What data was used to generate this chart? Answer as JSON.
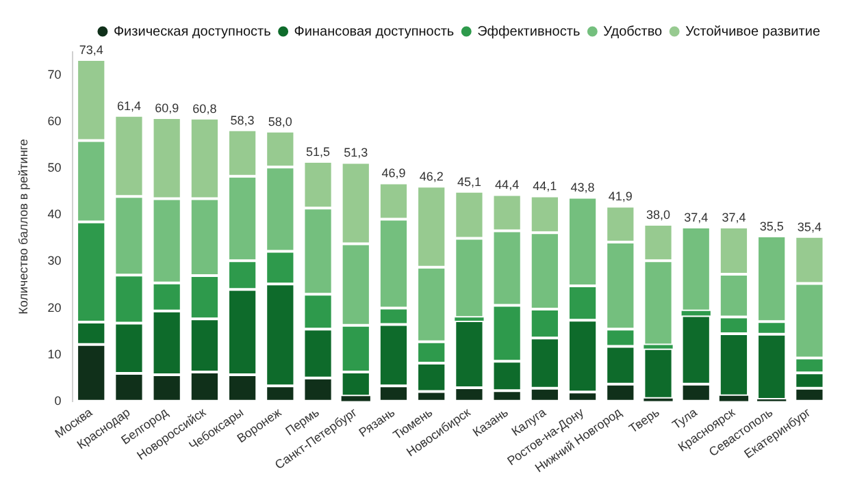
{
  "chart_data": {
    "type": "bar",
    "stacked": true,
    "ylabel": "Количество баллов в рейтинге",
    "categories": [
      "Москва",
      "Краснодар",
      "Белгород",
      "Новороссийск",
      "Чебоксары",
      "Воронеж",
      "Пермь",
      "Санкт-Петербург",
      "Рязань",
      "Тюмень",
      "Новосибирск",
      "Казань",
      "Калуга",
      "Ростов-на-Дону",
      "Нижний Новгород",
      "Тверь",
      "Тула",
      "Красноярск",
      "Севастополь",
      "Екатеринбург"
    ],
    "series": [
      {
        "name": "Физическая доступность",
        "color": "#10301a",
        "values": [
          12.2,
          6.0,
          5.7,
          6.3,
          5.7,
          3.3,
          5.0,
          1.1,
          3.3,
          2.1,
          2.9,
          2.3,
          2.8,
          2.0,
          3.7,
          0.6,
          3.7,
          1.2,
          0.4,
          2.8
        ]
      },
      {
        "name": "Финансовая доступность",
        "color": "#0e6b2b",
        "values": [
          4.8,
          10.8,
          13.7,
          11.4,
          18.3,
          21.9,
          10.5,
          5.2,
          13.2,
          6.1,
          14.4,
          6.3,
          10.8,
          15.4,
          8.1,
          10.7,
          14.7,
          13.3,
          14.0,
          3.3
        ]
      },
      {
        "name": "Эффективность",
        "color": "#2e9a4c",
        "values": [
          21.5,
          10.3,
          6.0,
          9.3,
          6.2,
          7.0,
          7.5,
          10.0,
          3.5,
          4.6,
          0.7,
          12.0,
          6.2,
          7.4,
          3.7,
          0.8,
          1.0,
          3.6,
          2.7,
          3.2
        ]
      },
      {
        "name": "Удобство",
        "color": "#74bf7e",
        "values": [
          17.5,
          16.9,
          18.1,
          16.5,
          18.1,
          18.1,
          18.5,
          17.5,
          19.1,
          16.0,
          17.0,
          16.0,
          16.4,
          19.0,
          18.7,
          18.1,
          18.0,
          9.2,
          18.4,
          16.0
        ]
      },
      {
        "name": "Устойчивое развитие",
        "color": "#97ca90",
        "values": [
          17.4,
          17.4,
          17.4,
          17.3,
          10.0,
          7.7,
          10.0,
          17.5,
          7.8,
          17.4,
          10.1,
          7.8,
          7.9,
          0,
          7.7,
          7.8,
          0,
          10.1,
          0,
          10.1
        ]
      }
    ],
    "totals": [
      "73,4",
      "61,4",
      "60,9",
      "60,8",
      "58,3",
      "58,0",
      "51,5",
      "51,3",
      "46,9",
      "46,2",
      "45,1",
      "44,4",
      "44,1",
      "43,8",
      "41,9",
      "38,0",
      "37,4",
      "37,4",
      "35,5",
      "35,4"
    ],
    "ylim": [
      0,
      75
    ],
    "yticks": [
      0,
      10,
      20,
      30,
      40,
      50,
      60,
      70
    ],
    "grid": false,
    "legend": "top right"
  }
}
